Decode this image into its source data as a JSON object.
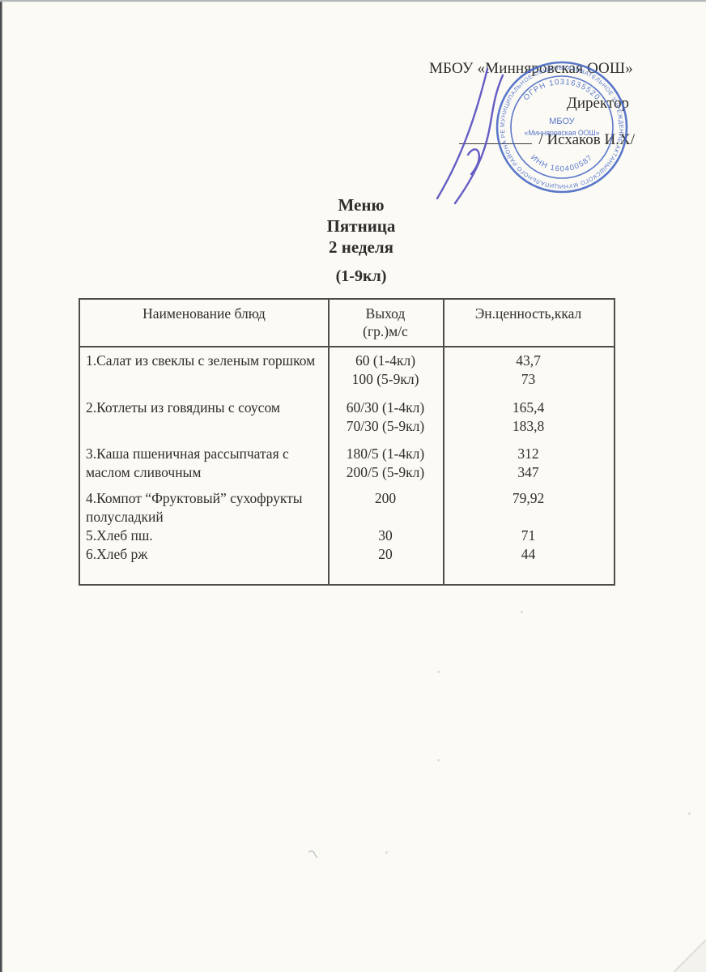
{
  "header": {
    "org_name": "МБОУ «Минняровская ООШ»",
    "director_label": "Директор",
    "signature_name": "/ Исхаков И.Х/"
  },
  "title": {
    "menu": "Меню",
    "day": "Пятница",
    "week": "2 неделя",
    "classes": "(1-9кл)"
  },
  "stamp": {
    "color": "#4466c4",
    "ring_text": "МУНИЦИПАЛЬНОЕ ОБЩЕОБРАЗОВАТЕЛЬНОЕ УЧРЕЖДЕНИЕ АКТАНЫШСКОГО МУНИЦИПАЛЬНОГО РАЙОНА РЕСПУБЛИКИ ТАТАРСТАН ★ ШКОЛА МУНИЦИПАЛЬНАЯ ★",
    "ogrn": "ОГРН 1031635520",
    "inn": "ИНН 160400587",
    "center_line1": "МБОУ",
    "center_line2": "«Минняровская ООШ»"
  },
  "table": {
    "headers": {
      "col1": "Наименование блюд",
      "col2_line1": "Выход",
      "col2_line2": "(гр.)м/с",
      "col3": "Эн.ценность,ккал"
    },
    "rows": [
      {
        "name_lines": [
          "1.Салат из свеклы с зеленым горшком"
        ],
        "output_lines": [
          "60 (1-4кл)",
          "100 (5-9кл)"
        ],
        "energy_lines": [
          "43,7",
          "73"
        ]
      },
      {
        "name_lines": [
          "2.Котлеты из говядины с соусом"
        ],
        "output_lines": [
          "60/30 (1-4кл)",
          "70/30 (5-9кл)"
        ],
        "energy_lines": [
          "165,4",
          "183,8"
        ]
      },
      {
        "name_lines": [
          "3.Каша пшеничная рассыпчатая с",
          "маслом сливочным"
        ],
        "output_lines": [
          "180/5 (1-4кл)",
          "200/5 (5-9кл)"
        ],
        "energy_lines": [
          "312",
          "347"
        ]
      },
      {
        "name_lines": [
          "4.Компот “Фруктовый” сухофрукты",
          "полусладкий"
        ],
        "output_lines": [
          "200"
        ],
        "energy_lines": [
          "79,92"
        ]
      },
      {
        "name_lines": [
          "5.Хлеб пш."
        ],
        "output_lines": [
          "30"
        ],
        "energy_lines": [
          "71"
        ]
      },
      {
        "name_lines": [
          "6.Хлеб рж"
        ],
        "output_lines": [
          "20"
        ],
        "energy_lines": [
          "44"
        ]
      }
    ]
  }
}
